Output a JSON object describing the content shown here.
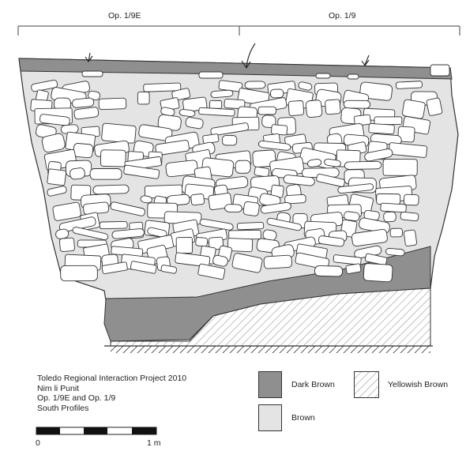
{
  "profile": {
    "sections": [
      {
        "label": "Op. 1/9E"
      },
      {
        "label": "Op. 1/9"
      }
    ]
  },
  "caption": {
    "lines": [
      "Toledo Regional Interaction Project 2010",
      "Nim li Punit",
      "Op. 1/9E and Op. 1/9",
      "South Profiles"
    ]
  },
  "legend": {
    "items": [
      {
        "label": "Dark Brown",
        "color": "#8f8f8f",
        "pattern": "solid"
      },
      {
        "label": "Yellowish Brown",
        "color": "#ffffff",
        "pattern": "hatch"
      },
      {
        "label": "Brown",
        "color": "#e4e4e4",
        "pattern": "solid"
      }
    ]
  },
  "scale": {
    "start_label": "0",
    "end_label": "1 m"
  }
}
